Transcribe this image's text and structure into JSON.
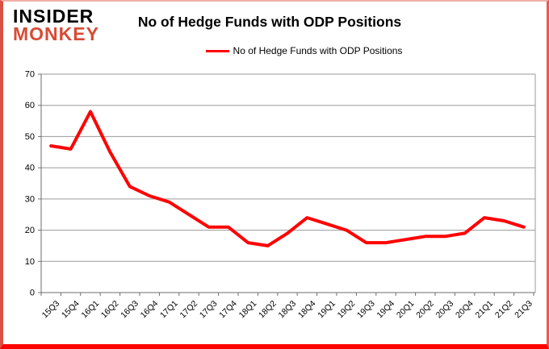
{
  "logo": {
    "line1": "INSIDER",
    "line2": "MONKEY",
    "line1_color": "#000000",
    "line2_color": "#d84b35"
  },
  "header": {
    "title": "No of Hedge Funds with ODP Positions"
  },
  "legend": {
    "label": "No of Hedge Funds with ODP Positions",
    "line_color": "#ff0000"
  },
  "chart_data": {
    "type": "line",
    "title": "No of Hedge Funds with ODP Positions",
    "categories": [
      "15Q3",
      "15Q4",
      "16Q1",
      "16Q2",
      "16Q3",
      "16Q4",
      "17Q1",
      "17Q2",
      "17Q3",
      "17Q4",
      "18Q1",
      "18Q2",
      "18Q3",
      "18Q4",
      "19Q1",
      "19Q2",
      "19Q3",
      "19Q4",
      "20Q1",
      "20Q2",
      "20Q3",
      "20Q4",
      "21Q1",
      "21Q2",
      "21Q3"
    ],
    "series": [
      {
        "name": "No of Hedge Funds with ODP Positions",
        "color": "#ff0000",
        "values": [
          47,
          46,
          58,
          45,
          34,
          31,
          29,
          25,
          21,
          21,
          16,
          15,
          19,
          24,
          22,
          20,
          16,
          16,
          17,
          18,
          18,
          19,
          24,
          23,
          21
        ]
      }
    ],
    "ylim": [
      0,
      70
    ],
    "ytick_interval": 10,
    "yticks": [
      0,
      10,
      20,
      30,
      40,
      50,
      60,
      70
    ],
    "grid": true,
    "legend_position": "top",
    "x_label_rotation_deg": -45,
    "gridline_color": "#9a9a9a",
    "axis_color": "#6e6e6e",
    "tick_label_color": "#000000",
    "page_border_color": "#ff0200"
  }
}
